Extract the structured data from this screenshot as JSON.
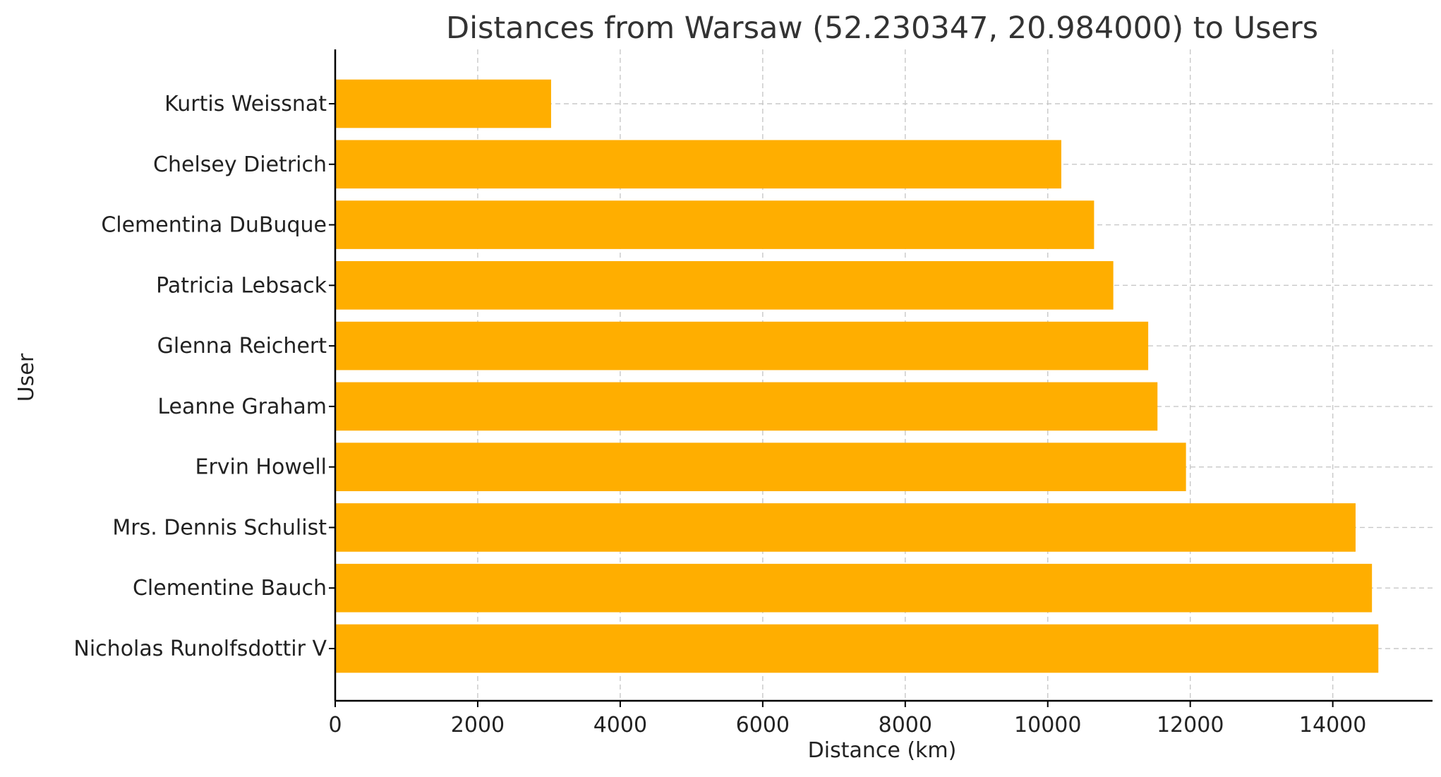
{
  "chart_data": {
    "type": "bar",
    "orientation": "horizontal",
    "title": "Distances from Warsaw (52.230347, 20.984000) to Users",
    "xlabel": "Distance (km)",
    "ylabel": "User",
    "categories": [
      "Kurtis Weissnat",
      "Chelsey Dietrich",
      "Clementina DuBuque",
      "Patricia Lebsack",
      "Glenna Reichert",
      "Leanne Graham",
      "Ervin Howell",
      "Mrs. Dennis Schulist",
      "Clementine Bauch",
      "Nicholas Runolfsdottir V"
    ],
    "values": [
      3030,
      10190,
      10650,
      10920,
      11410,
      11540,
      11940,
      14320,
      14550,
      14640
    ],
    "xlim": [
      0,
      15400
    ],
    "xticks": [
      0,
      2000,
      4000,
      6000,
      8000,
      10000,
      12000,
      14000
    ],
    "grid": true,
    "bar_color": "#ffae00"
  }
}
